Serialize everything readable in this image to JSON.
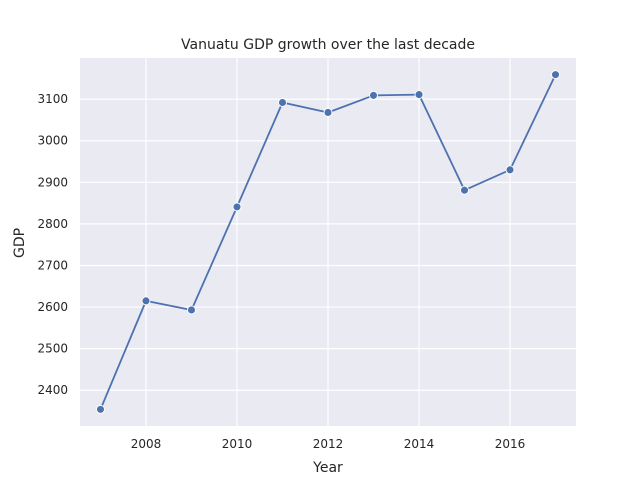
{
  "chart_data": {
    "type": "line",
    "title": "Vanuatu GDP growth over the last decade",
    "xlabel": "Year",
    "ylabel": "GDP",
    "x": [
      2007,
      2008,
      2009,
      2010,
      2011,
      2012,
      2013,
      2014,
      2015,
      2016,
      2017
    ],
    "series": [
      {
        "values": [
          2354,
          2615,
          2593,
          2841,
          3092,
          3068,
          3109,
          3111,
          2881,
          2930,
          3159
        ]
      }
    ],
    "xlim": [
      2006.55,
      2017.45
    ],
    "ylim": [
      2314,
      3199
    ],
    "xticks": [
      "2008",
      "2010",
      "2012",
      "2014",
      "2016"
    ],
    "yticks": [
      "2400",
      "2500",
      "2600",
      "2700",
      "2800",
      "2900",
      "3000",
      "3100"
    ],
    "grid": true,
    "colors": {
      "line": "#4c72b0",
      "plot_background": "#eaeaf2",
      "grid": "#ffffff"
    }
  }
}
